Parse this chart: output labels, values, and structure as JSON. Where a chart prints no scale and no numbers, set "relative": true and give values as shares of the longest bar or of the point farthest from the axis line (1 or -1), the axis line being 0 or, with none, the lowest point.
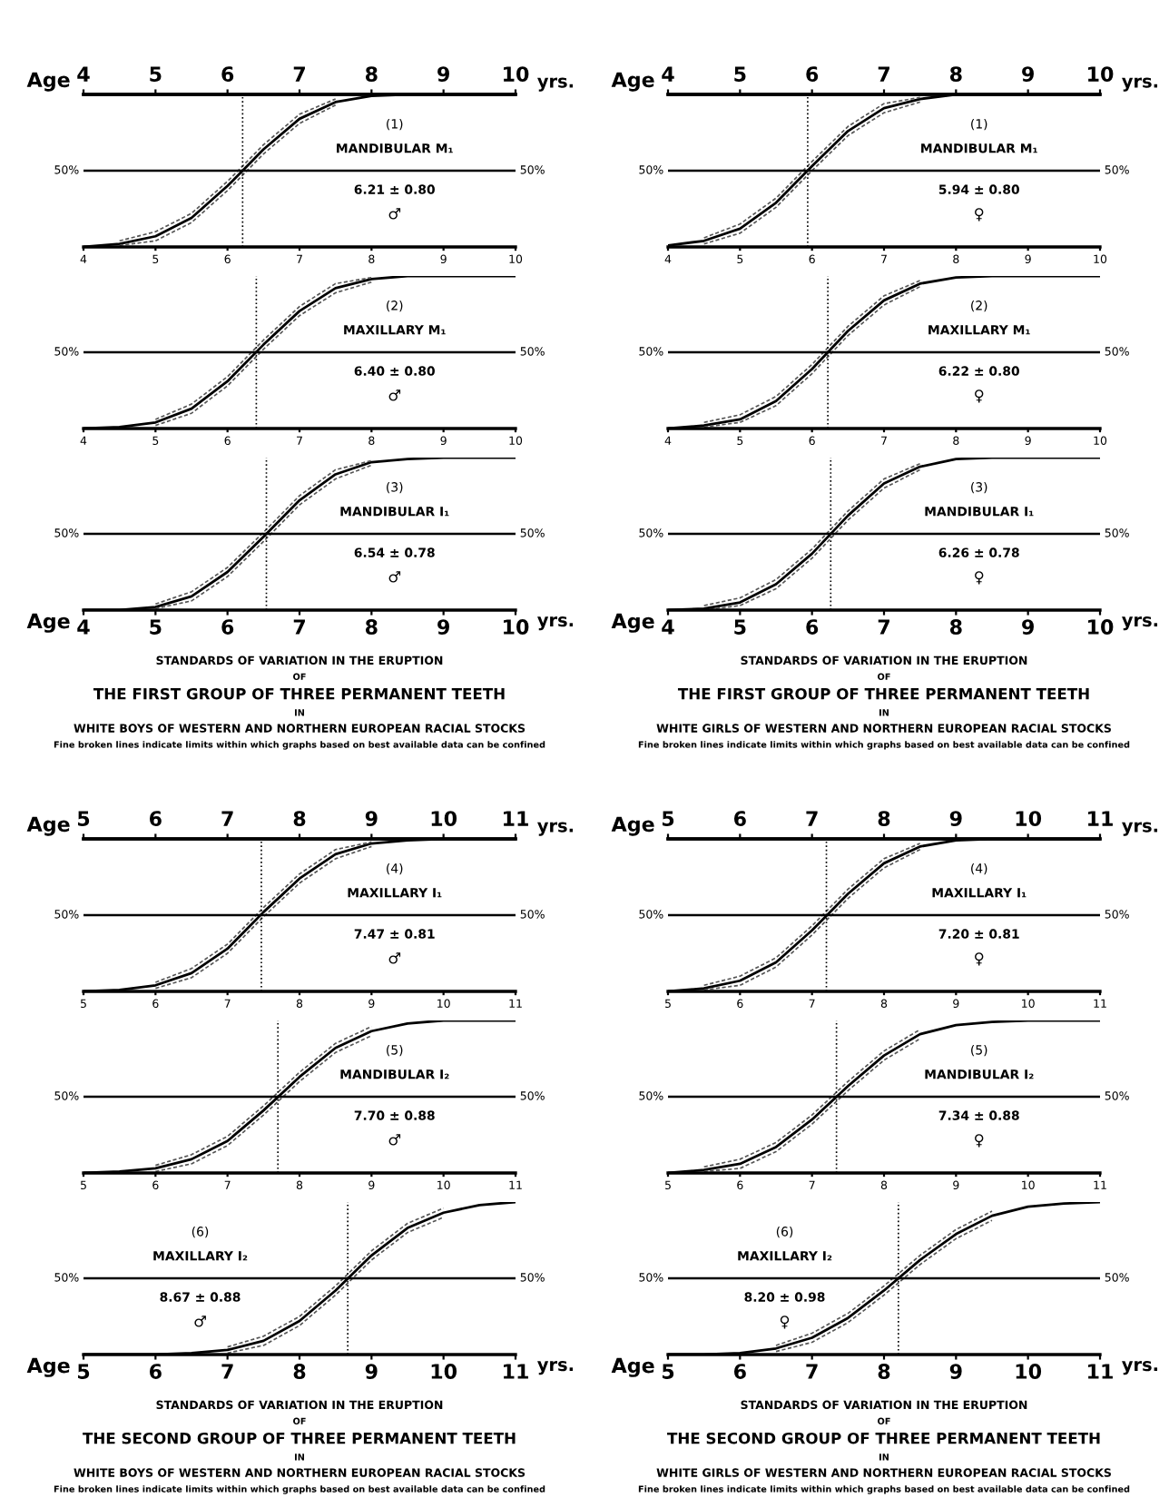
{
  "chart_data": [
    {
      "type": "line",
      "relative": true,
      "title": "(1)",
      "subtitle": "MANDIBULAR M₁",
      "annotations": [
        "6.21 ± 0.80",
        "♂",
        "yrs."
      ],
      "x2label": "Age",
      "xlim": [
        4,
        10
      ],
      "xticks": [
        4,
        5,
        6,
        7,
        8,
        9,
        10
      ],
      "x2lim": [
        4,
        10
      ],
      "x2ticks": [
        4,
        5,
        6,
        7,
        8,
        9,
        10
      ],
      "ref_lines": [
        {
          "axis": "y",
          "value": 0.5,
          "label": "50%"
        },
        {
          "axis": "x",
          "value": 6.21,
          "line_style": "dotted"
        }
      ],
      "series": [
        {
          "color": "#000000",
          "line_style": "solid",
          "x": [
            4,
            4.5,
            5,
            5.5,
            6,
            6.5,
            7,
            7.5,
            8,
            8.5,
            9,
            9.5,
            10
          ],
          "values": [
            0,
            0.02,
            0.07,
            0.19,
            0.4,
            0.64,
            0.84,
            0.95,
            0.99,
            1,
            1,
            1,
            1
          ]
        },
        {
          "color": "#555555",
          "line_style": "dashed",
          "x": [
            4.5,
            5,
            5.5,
            6,
            6.5,
            7,
            7.5
          ],
          "values": [
            0.04,
            0.1,
            0.22,
            0.43,
            0.67,
            0.87,
            0.97
          ]
        },
        {
          "color": "#555555",
          "line_style": "dashed",
          "x": [
            4.5,
            5,
            5.5,
            6,
            6.5,
            7,
            7.5
          ],
          "values": [
            0.01,
            0.04,
            0.16,
            0.37,
            0.61,
            0.81,
            0.93
          ]
        }
      ]
    },
    {
      "type": "line",
      "relative": true,
      "title": "(1)",
      "subtitle": "MANDIBULAR M₁",
      "annotations": [
        "5.94 ± 0.80",
        "♀",
        "yrs."
      ],
      "x2label": "Age",
      "xlim": [
        4,
        10
      ],
      "xticks": [
        4,
        5,
        6,
        7,
        8,
        9,
        10
      ],
      "x2lim": [
        4,
        10
      ],
      "x2ticks": [
        4,
        5,
        6,
        7,
        8,
        9,
        10
      ],
      "ref_lines": [
        {
          "axis": "y",
          "value": 0.5,
          "label": "50%"
        },
        {
          "axis": "x",
          "value": 5.94,
          "line_style": "dotted"
        }
      ],
      "series": [
        {
          "color": "#000000",
          "line_style": "solid",
          "x": [
            4,
            4.5,
            5,
            5.5,
            6,
            6.5,
            7,
            7.5,
            8,
            8.5,
            9,
            9.5,
            10
          ],
          "values": [
            0.01,
            0.04,
            0.12,
            0.29,
            0.53,
            0.76,
            0.91,
            0.97,
            1,
            1,
            1,
            1,
            1
          ]
        },
        {
          "color": "#555555",
          "line_style": "dashed",
          "x": [
            4.5,
            5,
            5.5,
            6,
            6.5,
            7,
            7.5
          ],
          "values": [
            0.06,
            0.15,
            0.32,
            0.56,
            0.79,
            0.94,
            0.98
          ]
        },
        {
          "color": "#555555",
          "line_style": "dashed",
          "x": [
            4.5,
            5,
            5.5,
            6,
            6.5,
            7,
            7.5
          ],
          "values": [
            0.02,
            0.09,
            0.26,
            0.5,
            0.73,
            0.88,
            0.95
          ]
        }
      ]
    },
    {
      "type": "line",
      "relative": true,
      "title": "(2)",
      "subtitle": "MAXILLARY M₁",
      "annotations": [
        "6.40 ± 0.80",
        "♂"
      ],
      "xlim": [
        4,
        10
      ],
      "xticks": [
        4,
        5,
        6,
        7,
        8,
        9,
        10
      ],
      "ref_lines": [
        {
          "axis": "y",
          "value": 0.5,
          "label": "50%"
        },
        {
          "axis": "x",
          "value": 6.4,
          "line_style": "dotted"
        }
      ],
      "series": [
        {
          "color": "#000000",
          "line_style": "solid",
          "x": [
            4,
            4.5,
            5,
            5.5,
            6,
            6.5,
            7,
            7.5,
            8,
            8.5,
            9,
            9.5,
            10
          ],
          "values": [
            0,
            0.01,
            0.04,
            0.13,
            0.31,
            0.55,
            0.77,
            0.92,
            0.98,
            1,
            1,
            1,
            1
          ]
        },
        {
          "color": "#555555",
          "line_style": "dashed",
          "x": [
            5,
            5.5,
            6,
            6.5,
            7,
            7.5,
            8
          ],
          "values": [
            0.06,
            0.16,
            0.34,
            0.58,
            0.8,
            0.95,
            0.99
          ]
        },
        {
          "color": "#555555",
          "line_style": "dashed",
          "x": [
            5,
            5.5,
            6,
            6.5,
            7,
            7.5,
            8
          ],
          "values": [
            0.02,
            0.1,
            0.28,
            0.52,
            0.74,
            0.89,
            0.96
          ]
        }
      ]
    },
    {
      "type": "line",
      "relative": true,
      "title": "(2)",
      "subtitle": "MAXILLARY M₁",
      "annotations": [
        "6.22 ± 0.80",
        "♀"
      ],
      "xlim": [
        4,
        10
      ],
      "xticks": [
        4,
        5,
        6,
        7,
        8,
        9,
        10
      ],
      "ref_lines": [
        {
          "axis": "y",
          "value": 0.5,
          "label": "50%"
        },
        {
          "axis": "x",
          "value": 6.22,
          "line_style": "dotted"
        }
      ],
      "series": [
        {
          "color": "#000000",
          "line_style": "solid",
          "x": [
            4,
            4.5,
            5,
            5.5,
            6,
            6.5,
            7,
            7.5,
            8,
            8.5,
            9,
            9.5,
            10
          ],
          "values": [
            0,
            0.02,
            0.06,
            0.18,
            0.39,
            0.64,
            0.84,
            0.95,
            0.99,
            1,
            1,
            1,
            1
          ]
        },
        {
          "color": "#555555",
          "line_style": "dashed",
          "x": [
            4.5,
            5,
            5.5,
            6,
            6.5,
            7,
            7.5
          ],
          "values": [
            0.04,
            0.09,
            0.21,
            0.42,
            0.67,
            0.87,
            0.97
          ]
        },
        {
          "color": "#555555",
          "line_style": "dashed",
          "x": [
            4.5,
            5,
            5.5,
            6,
            6.5,
            7,
            7.5
          ],
          "values": [
            0.01,
            0.04,
            0.15,
            0.36,
            0.61,
            0.81,
            0.93
          ]
        }
      ]
    },
    {
      "type": "line",
      "relative": true,
      "title": "(3)",
      "subtitle": "MANDIBULAR I₁",
      "annotations": [
        "6.54 ± 0.78",
        "♂",
        "yrs.",
        "STANDARDS OF VARIATION IN THE ERUPTION",
        "OF",
        "THE FIRST GROUP OF THREE PERMANENT TEETH",
        "IN",
        "WHITE BOYS OF WESTERN AND NORTHERN EUROPEAN RACIAL STOCKS",
        "Fine broken lines indicate limits within which graphs based on best available data can be confined"
      ],
      "xlabel": "Age",
      "xlim": [
        4,
        10
      ],
      "xticks": [
        4,
        5,
        6,
        7,
        8,
        9,
        10
      ],
      "ref_lines": [
        {
          "axis": "y",
          "value": 0.5,
          "label": "50%"
        },
        {
          "axis": "x",
          "value": 6.54,
          "line_style": "dotted"
        }
      ],
      "series": [
        {
          "color": "#000000",
          "line_style": "solid",
          "x": [
            4,
            4.5,
            5,
            5.5,
            6,
            6.5,
            7,
            7.5,
            8,
            8.5,
            9,
            9.5,
            10
          ],
          "values": [
            0,
            0,
            0.02,
            0.09,
            0.25,
            0.48,
            0.72,
            0.89,
            0.97,
            0.99,
            1,
            1,
            1
          ]
        },
        {
          "color": "#555555",
          "line_style": "dashed",
          "x": [
            5,
            5.5,
            6,
            6.5,
            7,
            7.5,
            8
          ],
          "values": [
            0.04,
            0.12,
            0.28,
            0.51,
            0.75,
            0.92,
            0.98
          ]
        },
        {
          "color": "#555555",
          "line_style": "dashed",
          "x": [
            5,
            5.5,
            6,
            6.5,
            7,
            7.5,
            8
          ],
          "values": [
            0.01,
            0.06,
            0.22,
            0.45,
            0.69,
            0.86,
            0.95
          ]
        }
      ]
    },
    {
      "type": "line",
      "relative": true,
      "title": "(3)",
      "subtitle": "MANDIBULAR I₁",
      "annotations": [
        "6.26 ± 0.78",
        "♀",
        "yrs.",
        "STANDARDS OF VARIATION IN THE ERUPTION",
        "OF",
        "THE FIRST GROUP OF THREE PERMANENT TEETH",
        "IN",
        "WHITE GIRLS OF WESTERN AND NORTHERN EUROPEAN RACIAL STOCKS",
        "Fine broken lines indicate limits within which graphs based on best available data can be confined"
      ],
      "xlabel": "Age",
      "xlim": [
        4,
        10
      ],
      "xticks": [
        4,
        5,
        6,
        7,
        8,
        9,
        10
      ],
      "ref_lines": [
        {
          "axis": "y",
          "value": 0.5,
          "label": "50%"
        },
        {
          "axis": "x",
          "value": 6.26,
          "line_style": "dotted"
        }
      ],
      "series": [
        {
          "color": "#000000",
          "line_style": "solid",
          "x": [
            4,
            4.5,
            5,
            5.5,
            6,
            6.5,
            7,
            7.5,
            8,
            8.5,
            9,
            9.5,
            10
          ],
          "values": [
            0,
            0.01,
            0.05,
            0.17,
            0.37,
            0.62,
            0.83,
            0.94,
            0.99,
            1,
            1,
            1,
            1
          ]
        },
        {
          "color": "#555555",
          "line_style": "dashed",
          "x": [
            4.5,
            5,
            5.5,
            6,
            6.5,
            7,
            7.5
          ],
          "values": [
            0.03,
            0.08,
            0.2,
            0.4,
            0.65,
            0.86,
            0.96
          ]
        },
        {
          "color": "#555555",
          "line_style": "dashed",
          "x": [
            4.5,
            5,
            5.5,
            6,
            6.5,
            7,
            7.5
          ],
          "values": [
            0.0,
            0.03,
            0.14,
            0.34,
            0.59,
            0.8,
            0.92
          ]
        }
      ]
    },
    {
      "type": "line",
      "relative": true,
      "title": "(4)",
      "subtitle": "MAXILLARY I₁",
      "annotations": [
        "7.47 ± 0.81",
        "♂",
        "yrs."
      ],
      "x2label": "Age",
      "xlim": [
        5,
        11
      ],
      "xticks": [
        5,
        6,
        7,
        8,
        9,
        10,
        11
      ],
      "x2lim": [
        5,
        11
      ],
      "x2ticks": [
        5,
        6,
        7,
        8,
        9,
        10,
        11
      ],
      "ref_lines": [
        {
          "axis": "y",
          "value": 0.5,
          "label": "50%"
        },
        {
          "axis": "x",
          "value": 7.47,
          "line_style": "dotted"
        }
      ],
      "series": [
        {
          "color": "#000000",
          "line_style": "solid",
          "x": [
            5,
            5.5,
            6,
            6.5,
            7,
            7.5,
            8,
            8.5,
            9,
            9.5,
            10,
            10.5,
            11
          ],
          "values": [
            0,
            0.01,
            0.04,
            0.12,
            0.28,
            0.52,
            0.74,
            0.9,
            0.97,
            0.99,
            1,
            1,
            1
          ]
        },
        {
          "color": "#555555",
          "line_style": "dashed",
          "x": [
            6,
            6.5,
            7,
            7.5,
            8,
            8.5,
            9
          ],
          "values": [
            0.06,
            0.15,
            0.31,
            0.55,
            0.77,
            0.93,
            0.98
          ]
        },
        {
          "color": "#555555",
          "line_style": "dashed",
          "x": [
            6,
            6.5,
            7,
            7.5,
            8,
            8.5,
            9
          ],
          "values": [
            0.02,
            0.09,
            0.25,
            0.49,
            0.71,
            0.87,
            0.95
          ]
        }
      ]
    },
    {
      "type": "line",
      "relative": true,
      "title": "(4)",
      "subtitle": "MAXILLARY I₁",
      "annotations": [
        "7.20 ± 0.81",
        "♀",
        "yrs."
      ],
      "x2label": "Age",
      "xlim": [
        5,
        11
      ],
      "xticks": [
        5,
        6,
        7,
        8,
        9,
        10,
        11
      ],
      "x2lim": [
        5,
        11
      ],
      "x2ticks": [
        5,
        6,
        7,
        8,
        9,
        10,
        11
      ],
      "ref_lines": [
        {
          "axis": "y",
          "value": 0.5,
          "label": "50%"
        },
        {
          "axis": "x",
          "value": 7.2,
          "line_style": "dotted"
        }
      ],
      "series": [
        {
          "color": "#000000",
          "line_style": "solid",
          "x": [
            5,
            5.5,
            6,
            6.5,
            7,
            7.5,
            8,
            8.5,
            9,
            9.5,
            10,
            10.5,
            11
          ],
          "values": [
            0,
            0.02,
            0.07,
            0.19,
            0.4,
            0.64,
            0.84,
            0.95,
            0.99,
            1,
            1,
            1,
            1
          ]
        },
        {
          "color": "#555555",
          "line_style": "dashed",
          "x": [
            5.5,
            6,
            6.5,
            7,
            7.5,
            8,
            8.5
          ],
          "values": [
            0.04,
            0.1,
            0.22,
            0.43,
            0.67,
            0.87,
            0.97
          ]
        },
        {
          "color": "#555555",
          "line_style": "dashed",
          "x": [
            5.5,
            6,
            6.5,
            7,
            7.5,
            8,
            8.5
          ],
          "values": [
            0.01,
            0.04,
            0.16,
            0.37,
            0.61,
            0.81,
            0.93
          ]
        }
      ]
    },
    {
      "type": "line",
      "relative": true,
      "title": "(5)",
      "subtitle": "MANDIBULAR I₂",
      "annotations": [
        "7.70 ± 0.88",
        "♂"
      ],
      "xlim": [
        5,
        11
      ],
      "xticks": [
        5,
        6,
        7,
        8,
        9,
        10,
        11
      ],
      "ref_lines": [
        {
          "axis": "y",
          "value": 0.5,
          "label": "50%"
        },
        {
          "axis": "x",
          "value": 7.7,
          "line_style": "dotted"
        }
      ],
      "series": [
        {
          "color": "#000000",
          "line_style": "solid",
          "x": [
            5,
            5.5,
            6,
            6.5,
            7,
            7.5,
            8,
            8.5,
            9,
            9.5,
            10,
            10.5,
            11
          ],
          "values": [
            0,
            0.01,
            0.03,
            0.09,
            0.21,
            0.41,
            0.63,
            0.82,
            0.93,
            0.98,
            1,
            1,
            1
          ]
        },
        {
          "color": "#555555",
          "line_style": "dashed",
          "x": [
            6,
            6.5,
            7,
            7.5,
            8,
            8.5,
            9
          ],
          "values": [
            0.05,
            0.12,
            0.24,
            0.44,
            0.66,
            0.85,
            0.96
          ]
        },
        {
          "color": "#555555",
          "line_style": "dashed",
          "x": [
            6,
            6.5,
            7,
            7.5,
            8,
            8.5,
            9
          ],
          "values": [
            0.01,
            0.06,
            0.18,
            0.38,
            0.6,
            0.79,
            0.9
          ]
        }
      ]
    },
    {
      "type": "line",
      "relative": true,
      "title": "(5)",
      "subtitle": "MANDIBULAR I₂",
      "annotations": [
        "7.34 ± 0.88",
        "♀"
      ],
      "xlim": [
        5,
        11
      ],
      "xticks": [
        5,
        6,
        7,
        8,
        9,
        10,
        11
      ],
      "ref_lines": [
        {
          "axis": "y",
          "value": 0.5,
          "label": "50%"
        },
        {
          "axis": "x",
          "value": 7.34,
          "line_style": "dotted"
        }
      ],
      "series": [
        {
          "color": "#000000",
          "line_style": "solid",
          "x": [
            5,
            5.5,
            6,
            6.5,
            7,
            7.5,
            8,
            8.5,
            9,
            9.5,
            10,
            10.5,
            11
          ],
          "values": [
            0,
            0.02,
            0.06,
            0.17,
            0.35,
            0.57,
            0.77,
            0.91,
            0.97,
            0.99,
            1,
            1,
            1
          ]
        },
        {
          "color": "#555555",
          "line_style": "dashed",
          "x": [
            5.5,
            6,
            6.5,
            7,
            7.5,
            8,
            8.5
          ],
          "values": [
            0.04,
            0.09,
            0.2,
            0.38,
            0.6,
            0.8,
            0.94
          ]
        },
        {
          "color": "#555555",
          "line_style": "dashed",
          "x": [
            5.5,
            6,
            6.5,
            7,
            7.5,
            8,
            8.5
          ],
          "values": [
            0.01,
            0.03,
            0.14,
            0.32,
            0.54,
            0.74,
            0.88
          ]
        }
      ]
    },
    {
      "type": "line",
      "relative": true,
      "title": "(6)",
      "subtitle": "MAXILLARY I₂",
      "annotations": [
        "8.67 ± 0.88",
        "♂",
        "yrs.",
        "STANDARDS OF VARIATION IN THE ERUPTION",
        "OF",
        "THE SECOND GROUP OF THREE PERMANENT TEETH",
        "IN",
        "WHITE BOYS OF WESTERN AND NORTHERN EUROPEAN RACIAL STOCKS",
        "Fine broken lines indicate limits within which graphs based on best available data can be confined"
      ],
      "xlabel": "Age",
      "xlim": [
        5,
        11
      ],
      "xticks": [
        5,
        6,
        7,
        8,
        9,
        10,
        11
      ],
      "ref_lines": [
        {
          "axis": "y",
          "value": 0.5,
          "label": "50%"
        },
        {
          "axis": "x",
          "value": 8.67,
          "line_style": "dotted"
        }
      ],
      "series": [
        {
          "color": "#000000",
          "line_style": "solid",
          "x": [
            5,
            5.5,
            6,
            6.5,
            7,
            7.5,
            8,
            8.5,
            9,
            9.5,
            10,
            10.5,
            11
          ],
          "values": [
            0,
            0,
            0,
            0.01,
            0.03,
            0.09,
            0.22,
            0.42,
            0.65,
            0.83,
            0.93,
            0.98,
            1
          ]
        },
        {
          "color": "#555555",
          "line_style": "dashed",
          "x": [
            7,
            7.5,
            8,
            8.5,
            9,
            9.5,
            10
          ],
          "values": [
            0.05,
            0.12,
            0.25,
            0.45,
            0.68,
            0.86,
            0.96
          ]
        },
        {
          "color": "#555555",
          "line_style": "dashed",
          "x": [
            7,
            7.5,
            8,
            8.5,
            9,
            9.5,
            10
          ],
          "values": [
            0.01,
            0.06,
            0.19,
            0.39,
            0.62,
            0.8,
            0.9
          ]
        }
      ]
    },
    {
      "type": "line",
      "relative": true,
      "title": "(6)",
      "subtitle": "MAXILLARY I₂",
      "annotations": [
        "8.20 ± 0.98",
        "♀",
        "yrs.",
        "STANDARDS OF VARIATION IN THE ERUPTION",
        "OF",
        "THE SECOND GROUP OF THREE PERMANENT TEETH",
        "IN",
        "WHITE GIRLS OF WESTERN AND NORTHERN EUROPEAN RACIAL STOCKS",
        "Fine broken lines indicate limits within which graphs based on best available data can be confined"
      ],
      "xlabel": "Age",
      "xlim": [
        5,
        11
      ],
      "xticks": [
        5,
        6,
        7,
        8,
        9,
        10,
        11
      ],
      "ref_lines": [
        {
          "axis": "y",
          "value": 0.5,
          "label": "50%"
        },
        {
          "axis": "x",
          "value": 8.2,
          "line_style": "dotted"
        }
      ],
      "series": [
        {
          "color": "#000000",
          "line_style": "solid",
          "x": [
            5,
            5.5,
            6,
            6.5,
            7,
            7.5,
            8,
            8.5,
            9,
            9.5,
            10,
            10.5,
            11
          ],
          "values": [
            0,
            0,
            0.01,
            0.04,
            0.11,
            0.24,
            0.42,
            0.62,
            0.79,
            0.91,
            0.97,
            0.99,
            1
          ]
        },
        {
          "color": "#555555",
          "line_style": "dashed",
          "x": [
            6.5,
            7,
            7.5,
            8,
            8.5,
            9,
            9.5
          ],
          "values": [
            0.06,
            0.14,
            0.27,
            0.45,
            0.65,
            0.82,
            0.94
          ]
        },
        {
          "color": "#555555",
          "line_style": "dashed",
          "x": [
            6.5,
            7,
            7.5,
            8,
            8.5,
            9,
            9.5
          ],
          "values": [
            0.02,
            0.08,
            0.21,
            0.39,
            0.59,
            0.76,
            0.88
          ]
        }
      ]
    }
  ]
}
